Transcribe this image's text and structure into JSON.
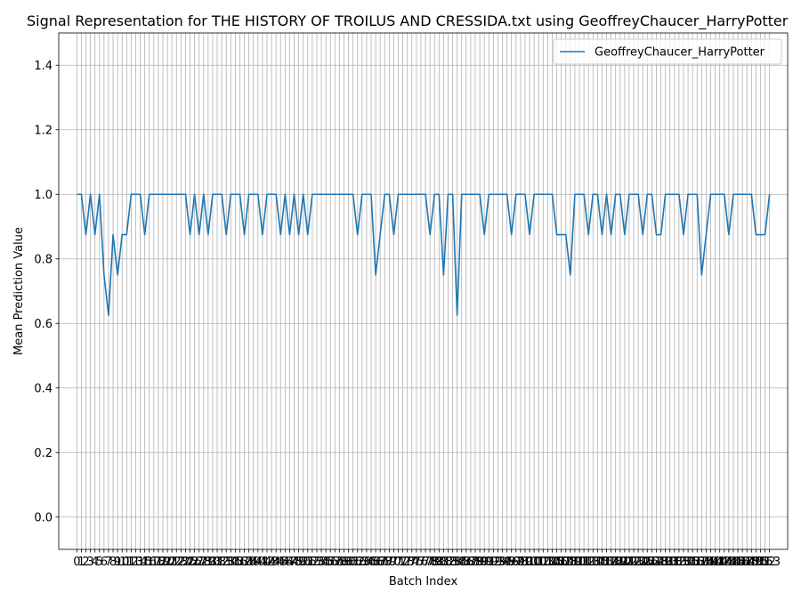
{
  "chart_data": {
    "type": "line",
    "title": "Signal Representation for THE HISTORY OF TROILUS AND CRESSIDA.txt using GeoffreyChaucer_HarryPotter",
    "xlabel": "Batch Index",
    "ylabel": "Mean Prediction Value",
    "xlim": [
      -4,
      157
    ],
    "ylim": [
      -0.1,
      1.5
    ],
    "x_ticks": [
      0,
      153
    ],
    "y_ticks": [
      0.0,
      0.2,
      0.4,
      0.6,
      0.8,
      1.0,
      1.2,
      1.4
    ],
    "y_tick_labels": [
      "0.0",
      "0.2",
      "0.4",
      "0.6",
      "0.8",
      "1.0",
      "1.2",
      "1.4"
    ],
    "x_tick_labels_visible": [
      "0",
      "1",
      "2",
      "3",
      "4",
      "5",
      "6",
      "7",
      "8",
      "9",
      "10",
      "153"
    ],
    "grid": true,
    "legend_position": "top-right",
    "series": [
      {
        "name": "GeoffreyChaucer_HarryPotter",
        "color": "#1f77b4",
        "x": [
          0,
          1,
          2,
          3,
          4,
          5,
          6,
          7,
          8,
          9,
          10,
          11,
          12,
          13,
          14,
          15,
          16,
          17,
          18,
          19,
          20,
          21,
          22,
          23,
          24,
          25,
          26,
          27,
          28,
          29,
          30,
          31,
          32,
          33,
          34,
          35,
          36,
          37,
          38,
          39,
          40,
          41,
          42,
          43,
          44,
          45,
          46,
          47,
          48,
          49,
          50,
          51,
          52,
          53,
          54,
          55,
          56,
          57,
          58,
          59,
          60,
          61,
          62,
          63,
          64,
          65,
          66,
          67,
          68,
          69,
          70,
          71,
          72,
          73,
          74,
          75,
          76,
          77,
          78,
          79,
          80,
          81,
          82,
          83,
          84,
          85,
          86,
          87,
          88,
          89,
          90,
          91,
          92,
          93,
          94,
          95,
          96,
          97,
          98,
          99,
          100,
          101,
          102,
          103,
          104,
          105,
          106,
          107,
          108,
          109,
          110,
          111,
          112,
          113,
          114,
          115,
          116,
          117,
          118,
          119,
          120,
          121,
          122,
          123,
          124,
          125,
          126,
          127,
          128,
          129,
          130,
          131,
          132,
          133,
          134,
          135,
          136,
          137,
          138,
          139,
          140,
          141,
          142,
          143,
          144,
          145,
          146,
          147,
          148,
          149,
          150,
          151,
          152,
          153
        ],
        "y": [
          1.0,
          1.0,
          0.875,
          1.0,
          0.875,
          1.0,
          0.75,
          0.625,
          0.875,
          0.75,
          0.875,
          0.875,
          1.0,
          1.0,
          1.0,
          0.875,
          1.0,
          1.0,
          1.0,
          1.0,
          1.0,
          1.0,
          1.0,
          1.0,
          1.0,
          0.875,
          1.0,
          0.875,
          1.0,
          0.875,
          1.0,
          1.0,
          1.0,
          0.875,
          1.0,
          1.0,
          1.0,
          0.875,
          1.0,
          1.0,
          1.0,
          0.875,
          1.0,
          1.0,
          1.0,
          0.875,
          1.0,
          0.875,
          1.0,
          0.875,
          1.0,
          0.875,
          1.0,
          1.0,
          1.0,
          1.0,
          1.0,
          1.0,
          1.0,
          1.0,
          1.0,
          1.0,
          0.875,
          1.0,
          1.0,
          1.0,
          0.75,
          0.875,
          1.0,
          1.0,
          0.875,
          1.0,
          1.0,
          1.0,
          1.0,
          1.0,
          1.0,
          1.0,
          0.875,
          1.0,
          1.0,
          0.75,
          1.0,
          1.0,
          0.625,
          1.0,
          1.0,
          1.0,
          1.0,
          1.0,
          0.875,
          1.0,
          1.0,
          1.0,
          1.0,
          1.0,
          0.875,
          1.0,
          1.0,
          1.0,
          0.875,
          1.0,
          1.0,
          1.0,
          1.0,
          1.0,
          0.875,
          0.875,
          0.875,
          0.75,
          1.0,
          1.0,
          1.0,
          0.875,
          1.0,
          1.0,
          0.875,
          1.0,
          0.875,
          1.0,
          1.0,
          0.875,
          1.0,
          1.0,
          1.0,
          0.875,
          1.0,
          1.0,
          0.875,
          0.875,
          1.0,
          1.0,
          1.0,
          1.0,
          0.875,
          1.0,
          1.0,
          1.0,
          0.75,
          0.875,
          1.0,
          1.0,
          1.0,
          1.0,
          0.875,
          1.0,
          1.0,
          1.0,
          1.0,
          1.0,
          0.875,
          0.875,
          0.875,
          1.0
        ]
      }
    ]
  }
}
